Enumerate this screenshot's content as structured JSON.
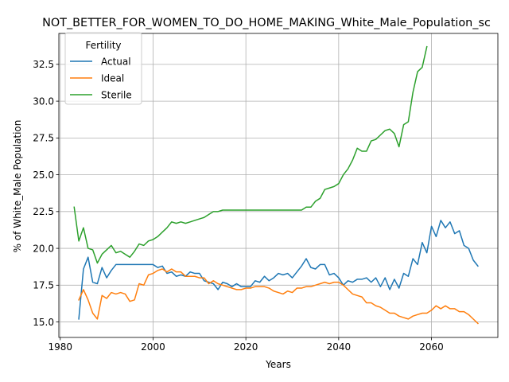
{
  "chart_data": {
    "type": "line",
    "title": "NOT_BETTER_FOR_WOMEN_TO_DO_HOME_MAKING_White_Male_Population_sc",
    "xlabel": "Years",
    "ylabel": "% of White_Male Population",
    "xlim": [
      1979.7,
      2074.3
    ],
    "ylim": [
      13.95,
      34.6
    ],
    "xticks": [
      1980,
      2000,
      2020,
      2040,
      2060
    ],
    "xtick_labels": [
      "1980",
      "2000",
      "2020",
      "2040",
      "2060"
    ],
    "yticks": [
      15.0,
      17.5,
      20.0,
      22.5,
      25.0,
      27.5,
      30.0,
      32.5
    ],
    "ytick_labels": [
      "15.0",
      "17.5",
      "20.0",
      "22.5",
      "25.0",
      "27.5",
      "30.0",
      "32.5"
    ],
    "grid": true,
    "legend": {
      "title": "Fertility",
      "placement": "top-left"
    },
    "series": [
      {
        "name": "Actual",
        "color": "#1f77b4",
        "x": [
          1984,
          1985,
          1986,
          1987,
          1988,
          1989,
          1990,
          1991,
          1992,
          1993,
          1994,
          1995,
          1996,
          1997,
          1998,
          1999,
          2000,
          2001,
          2002,
          2003,
          2004,
          2005,
          2006,
          2007,
          2008,
          2009,
          2010,
          2011,
          2012,
          2013,
          2014,
          2015,
          2016,
          2017,
          2018,
          2019,
          2020,
          2021,
          2022,
          2023,
          2024,
          2025,
          2026,
          2027,
          2028,
          2029,
          2030,
          2031,
          2032,
          2033,
          2034,
          2035,
          2036,
          2037,
          2038,
          2039,
          2040,
          2041,
          2042,
          2043,
          2044,
          2045,
          2046,
          2047,
          2048,
          2049,
          2050,
          2051,
          2052,
          2053,
          2054,
          2055,
          2056,
          2057,
          2058,
          2059,
          2060,
          2061,
          2062,
          2063,
          2064,
          2065,
          2066,
          2067,
          2068,
          2069,
          2070
        ],
        "values": [
          15.2,
          18.6,
          19.4,
          17.7,
          17.6,
          18.7,
          18.0,
          18.5,
          18.9,
          18.9,
          18.9,
          18.9,
          18.9,
          18.9,
          18.9,
          18.9,
          18.9,
          18.7,
          18.8,
          18.3,
          18.4,
          18.1,
          18.2,
          18.1,
          18.4,
          18.3,
          18.3,
          17.8,
          17.7,
          17.6,
          17.2,
          17.7,
          17.6,
          17.4,
          17.6,
          17.4,
          17.4,
          17.4,
          17.8,
          17.7,
          18.1,
          17.8,
          18.0,
          18.3,
          18.2,
          18.3,
          18.0,
          18.4,
          18.8,
          19.3,
          18.7,
          18.6,
          18.9,
          18.9,
          18.2,
          18.3,
          18.0,
          17.5,
          17.8,
          17.7,
          17.9,
          17.9,
          18.0,
          17.7,
          18.0,
          17.4,
          18.0,
          17.2,
          17.9,
          17.3,
          18.3,
          18.1,
          19.3,
          18.9,
          20.4,
          19.7,
          21.5,
          20.8,
          21.9,
          21.4,
          21.8,
          21.0,
          21.2,
          20.2,
          20.0,
          19.2,
          18.8
        ]
      },
      {
        "name": "Ideal",
        "color": "#ff7f0e",
        "x": [
          1984,
          1985,
          1986,
          1987,
          1988,
          1989,
          1990,
          1991,
          1992,
          1993,
          1994,
          1995,
          1996,
          1997,
          1998,
          1999,
          2000,
          2001,
          2002,
          2003,
          2004,
          2005,
          2006,
          2007,
          2008,
          2009,
          2010,
          2011,
          2012,
          2013,
          2014,
          2015,
          2016,
          2017,
          2018,
          2019,
          2020,
          2021,
          2022,
          2023,
          2024,
          2025,
          2026,
          2027,
          2028,
          2029,
          2030,
          2031,
          2032,
          2033,
          2034,
          2035,
          2036,
          2037,
          2038,
          2039,
          2040,
          2041,
          2042,
          2043,
          2044,
          2045,
          2046,
          2047,
          2048,
          2049,
          2050,
          2051,
          2052,
          2053,
          2054,
          2055,
          2056,
          2057,
          2058,
          2059,
          2060,
          2061,
          2062,
          2063,
          2064,
          2065,
          2066,
          2067,
          2068,
          2069,
          2070
        ],
        "values": [
          16.5,
          17.2,
          16.5,
          15.6,
          15.2,
          16.8,
          16.6,
          17.0,
          16.9,
          17.0,
          16.9,
          16.4,
          16.5,
          17.6,
          17.5,
          18.2,
          18.3,
          18.5,
          18.6,
          18.4,
          18.6,
          18.4,
          18.4,
          18.1,
          18.1,
          18.1,
          18.0,
          18.0,
          17.6,
          17.8,
          17.6,
          17.5,
          17.4,
          17.3,
          17.2,
          17.2,
          17.3,
          17.3,
          17.4,
          17.4,
          17.4,
          17.3,
          17.1,
          17.0,
          16.9,
          17.1,
          17.0,
          17.3,
          17.3,
          17.4,
          17.4,
          17.5,
          17.6,
          17.7,
          17.6,
          17.7,
          17.7,
          17.5,
          17.2,
          16.9,
          16.8,
          16.7,
          16.3,
          16.3,
          16.1,
          16.0,
          15.8,
          15.6,
          15.6,
          15.4,
          15.3,
          15.2,
          15.4,
          15.5,
          15.6,
          15.6,
          15.8,
          16.1,
          15.9,
          16.1,
          15.9,
          15.9,
          15.7,
          15.7,
          15.5,
          15.2,
          14.9
        ]
      },
      {
        "name": "Sterile",
        "color": "#2ca02c",
        "x": [
          1983,
          1984,
          1985,
          1986,
          1987,
          1988,
          1989,
          1990,
          1991,
          1992,
          1993,
          1994,
          1995,
          1996,
          1997,
          1998,
          1999,
          2000,
          2001,
          2002,
          2003,
          2004,
          2005,
          2006,
          2007,
          2008,
          2009,
          2010,
          2011,
          2012,
          2013,
          2014,
          2015,
          2016,
          2017,
          2018,
          2019,
          2020,
          2021,
          2022,
          2023,
          2024,
          2025,
          2026,
          2027,
          2028,
          2029,
          2030,
          2031,
          2032,
          2033,
          2034,
          2035,
          2036,
          2037,
          2038,
          2039,
          2040,
          2041,
          2042,
          2043,
          2044,
          2045,
          2046,
          2047,
          2048,
          2049,
          2050,
          2051,
          2052,
          2053,
          2054,
          2055,
          2056,
          2057,
          2058,
          2059
        ],
        "values": [
          22.8,
          20.5,
          21.4,
          20.0,
          19.9,
          19.0,
          19.6,
          19.9,
          20.2,
          19.7,
          19.8,
          19.6,
          19.4,
          19.8,
          20.3,
          20.2,
          20.5,
          20.6,
          20.8,
          21.1,
          21.4,
          21.8,
          21.7,
          21.8,
          21.7,
          21.8,
          21.9,
          22.0,
          22.1,
          22.3,
          22.5,
          22.5,
          22.6,
          22.6,
          22.6,
          22.6,
          22.6,
          22.6,
          22.6,
          22.6,
          22.6,
          22.6,
          22.6,
          22.6,
          22.6,
          22.6,
          22.6,
          22.6,
          22.6,
          22.6,
          22.8,
          22.8,
          23.2,
          23.4,
          24.0,
          24.1,
          24.2,
          24.4,
          25.0,
          25.4,
          26.0,
          26.8,
          26.6,
          26.6,
          27.3,
          27.4,
          27.7,
          28.0,
          28.1,
          27.8,
          26.9,
          28.4,
          28.6,
          30.6,
          32.0,
          32.3,
          33.7
        ]
      }
    ]
  }
}
